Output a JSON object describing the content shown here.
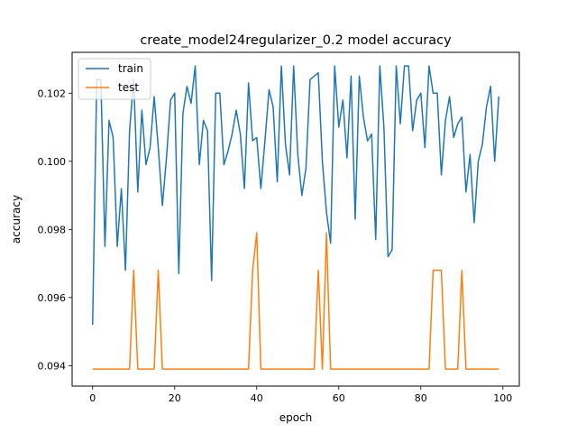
{
  "chart_data": {
    "type": "line",
    "title": "create_model24regularizer_0.2 model accuracy",
    "xlabel": "epoch",
    "ylabel": "accuracy",
    "xlim": [
      -5,
      104
    ],
    "ylim": [
      0.0934,
      0.1032
    ],
    "x_ticks": [
      0,
      20,
      40,
      60,
      80,
      100
    ],
    "y_ticks": [
      0.094,
      0.096,
      0.098,
      0.1,
      0.102
    ],
    "y_tick_labels": [
      "0.094",
      "0.096",
      "0.098",
      "0.100",
      "0.102"
    ],
    "grid": false,
    "legend": "upper left",
    "series": [
      {
        "name": "train",
        "color": "#1f77b4",
        "values": [
          0.0952,
          0.1024,
          0.1024,
          0.0975,
          0.1012,
          0.1007,
          0.0975,
          0.0992,
          0.0968,
          0.1009,
          0.1024,
          0.0991,
          0.1015,
          0.0999,
          0.1004,
          0.1019,
          0.1004,
          0.0987,
          0.1001,
          0.1018,
          0.102,
          0.0967,
          0.1014,
          0.1022,
          0.1017,
          0.1028,
          0.0999,
          0.1012,
          0.1009,
          0.0965,
          0.102,
          0.102,
          0.0999,
          0.1003,
          0.1008,
          0.1015,
          0.1008,
          0.0992,
          0.1023,
          0.1006,
          0.1007,
          0.0992,
          0.1006,
          0.1021,
          0.1016,
          0.0994,
          0.1028,
          0.1005,
          0.0996,
          0.1028,
          0.1002,
          0.099,
          0.0998,
          0.1024,
          0.1025,
          0.1026,
          0.1,
          0.0985,
          0.0976,
          0.1028,
          0.101,
          0.1018,
          0.1001,
          0.1025,
          0.0983,
          0.1025,
          0.1013,
          0.1006,
          0.1008,
          0.0977,
          0.1028,
          0.101,
          0.0972,
          0.0974,
          0.1028,
          0.1011,
          0.1028,
          0.1028,
          0.1009,
          0.1018,
          0.102,
          0.1004,
          0.1028,
          0.102,
          0.102,
          0.0996,
          0.1012,
          0.1019,
          0.1007,
          0.1011,
          0.1013,
          0.0991,
          0.1002,
          0.0982,
          0.1,
          0.1005,
          0.1016,
          0.1022,
          0.1,
          0.1019
        ]
      },
      {
        "name": "test",
        "color": "#ff7f0e",
        "values": [
          0.0939,
          0.0939,
          0.0939,
          0.0939,
          0.0939,
          0.0939,
          0.0939,
          0.0939,
          0.0939,
          0.0939,
          0.0968,
          0.0939,
          0.0939,
          0.0939,
          0.0939,
          0.0939,
          0.0968,
          0.0939,
          0.0939,
          0.0939,
          0.0939,
          0.0939,
          0.0939,
          0.0939,
          0.0939,
          0.0939,
          0.0939,
          0.0939,
          0.0939,
          0.0939,
          0.0939,
          0.0939,
          0.0939,
          0.0939,
          0.0939,
          0.0939,
          0.0939,
          0.0939,
          0.0939,
          0.0968,
          0.0979,
          0.0939,
          0.0939,
          0.0939,
          0.0939,
          0.0939,
          0.0939,
          0.0939,
          0.0939,
          0.0939,
          0.0939,
          0.0939,
          0.0939,
          0.0939,
          0.0939,
          0.0968,
          0.0939,
          0.0979,
          0.0939,
          0.0939,
          0.0939,
          0.0939,
          0.0939,
          0.0939,
          0.0939,
          0.0939,
          0.0939,
          0.0939,
          0.0939,
          0.0939,
          0.0939,
          0.0939,
          0.0939,
          0.0939,
          0.0939,
          0.0939,
          0.0939,
          0.0939,
          0.0939,
          0.0939,
          0.0939,
          0.0939,
          0.0939,
          0.0968,
          0.0968,
          0.0968,
          0.0939,
          0.0939,
          0.0939,
          0.0939,
          0.0968,
          0.0939,
          0.0939,
          0.0939,
          0.0939,
          0.0939,
          0.0939,
          0.0939,
          0.0939,
          0.0939
        ]
      }
    ]
  }
}
